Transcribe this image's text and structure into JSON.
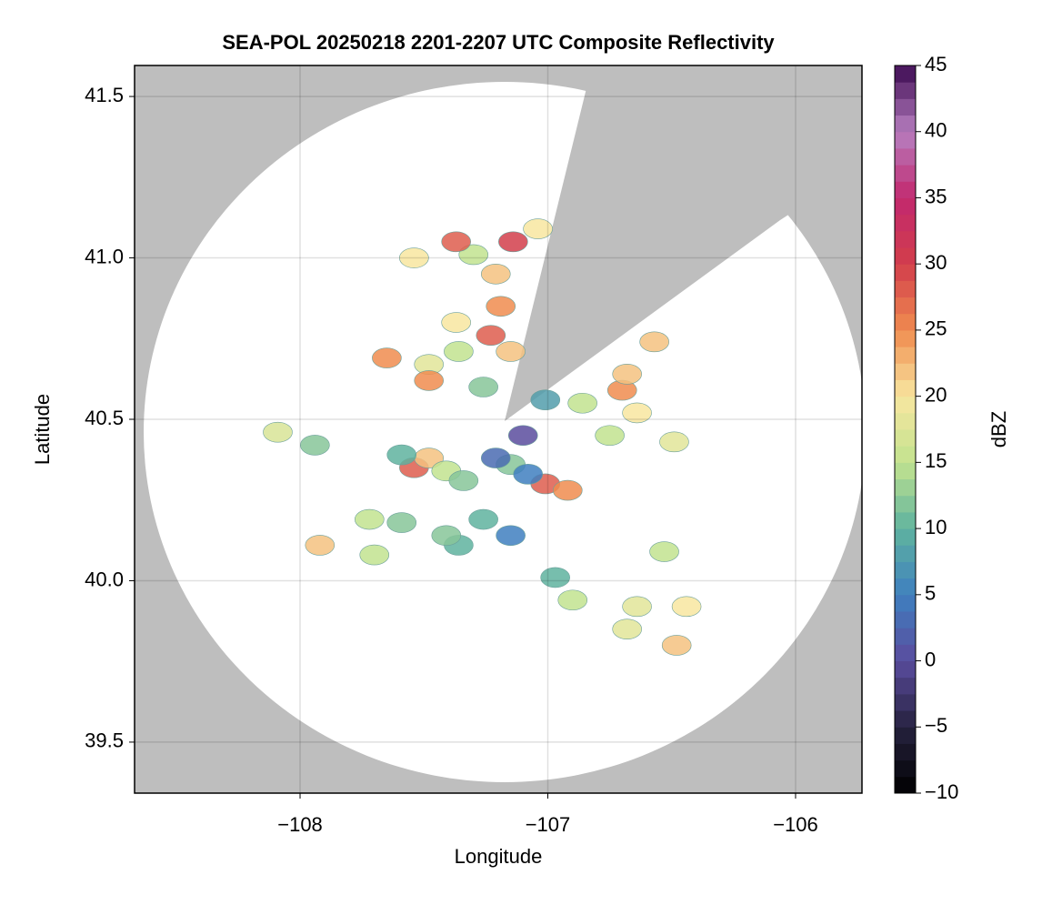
{
  "chart_data": {
    "type": "scatter",
    "title": "SEA-POL 20250218 2201-2207 UTC Composite Reflectivity",
    "x_label": "Longitude",
    "y_label": "Latitude",
    "xlim": [
      -108.668,
      -105.732
    ],
    "ylim": [
      39.342,
      41.596
    ],
    "xticks": [
      {
        "value": -108,
        "label": "−108"
      },
      {
        "value": -107,
        "label": "−107"
      },
      {
        "value": -106,
        "label": "−106"
      }
    ],
    "yticks": [
      39.5,
      {
        "value": 40.0,
        "label": "40.0"
      },
      40.5,
      {
        "value": 41.0,
        "label": "41.0"
      },
      41.5
    ],
    "grid": true,
    "colorbar_label": "dBZ",
    "clim": [
      -10,
      45
    ],
    "cticks": [
      {
        "value": -10,
        "label": "−10"
      },
      {
        "value": -5,
        "label": "−5"
      },
      0,
      5,
      10,
      15,
      20,
      25,
      30,
      35,
      40,
      45
    ],
    "colormap": [
      "#000000",
      "#26223f",
      "#5a4c9e",
      "#3f7fbf",
      "#5fb39f",
      "#c2e38f",
      "#f8e6a0",
      "#f08c4f",
      "#d23e4b",
      "#c2286e",
      "#b77fc0",
      "#3d0a52"
    ],
    "x": [
      -107.54,
      -107.48,
      -107.41,
      -107.34,
      -107.59,
      -107.15,
      -107.01,
      -106.92,
      -107.08,
      -107.21,
      -107.26,
      -107.15,
      -107.36,
      -107.41,
      -107.59,
      -107.72,
      -107.92,
      -107.7,
      -106.97,
      -106.9,
      -106.68,
      -106.64,
      -106.48,
      -106.44,
      -106.53,
      -108.09,
      -107.94,
      -107.01,
      -106.86,
      -106.7,
      -106.64,
      -106.68,
      -106.57,
      -107.1,
      -106.75,
      -106.49,
      -107.65,
      -107.48,
      -107.36,
      -107.23,
      -107.15,
      -107.26,
      -107.37,
      -107.19,
      -107.21,
      -107.3,
      -107.54,
      -107.37,
      -107.14,
      -107.04,
      -107.48
    ],
    "y": [
      40.35,
      40.38,
      40.34,
      40.31,
      40.39,
      40.36,
      40.3,
      40.28,
      40.33,
      40.38,
      40.19,
      40.14,
      40.11,
      40.14,
      40.18,
      40.19,
      40.11,
      40.08,
      40.01,
      39.94,
      39.85,
      39.92,
      39.8,
      39.92,
      40.09,
      40.46,
      40.42,
      40.56,
      40.55,
      40.59,
      40.52,
      40.64,
      40.74,
      40.45,
      40.45,
      40.43,
      40.69,
      40.67,
      40.71,
      40.76,
      40.71,
      40.6,
      40.8,
      40.85,
      40.95,
      41.01,
      41.0,
      41.05,
      41.05,
      41.09,
      40.62
    ],
    "values": [
      28,
      22,
      15,
      12,
      10,
      12,
      28,
      25,
      5,
      3,
      10,
      5,
      10,
      12,
      12,
      15,
      22,
      15,
      10,
      15,
      18,
      18,
      22,
      20,
      15,
      17,
      12,
      8,
      15,
      25,
      20,
      22,
      22,
      0,
      15,
      18,
      25,
      18,
      15,
      28,
      22,
      12,
      20,
      25,
      22,
      15,
      20,
      28,
      30,
      20,
      25
    ]
  }
}
